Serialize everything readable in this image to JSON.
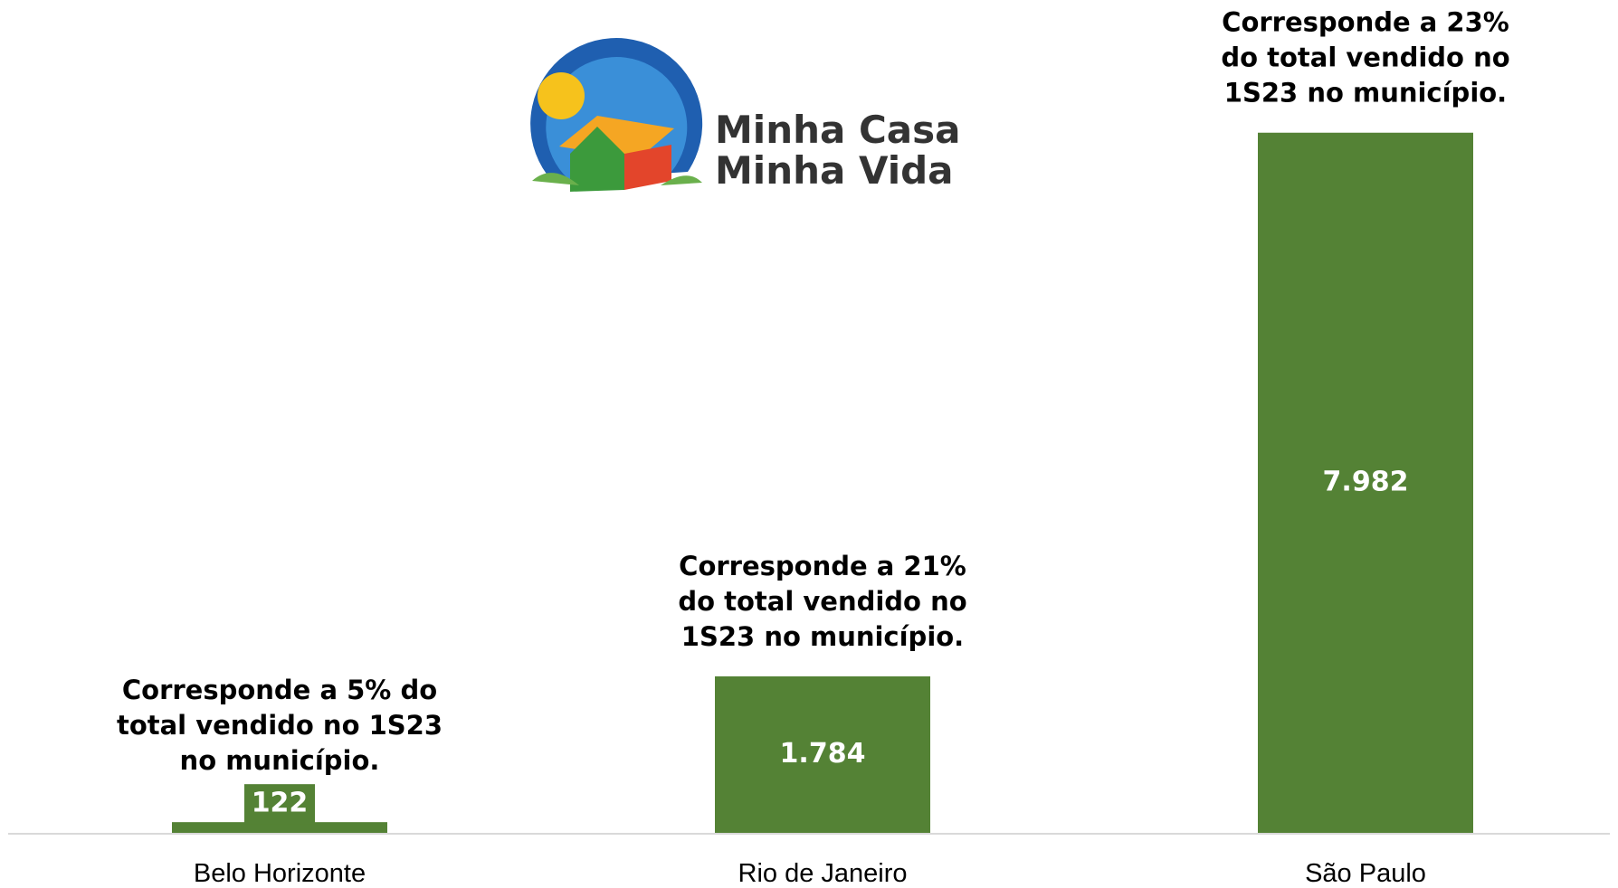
{
  "chart_data": {
    "type": "bar",
    "logo_text": [
      "Minha Casa",
      "Minha Vida"
    ],
    "categories": [
      "Belo Horizonte",
      "Rio de Janeiro",
      "São Paulo"
    ],
    "values": [
      122,
      1784,
      7982
    ],
    "value_labels": [
      "122",
      "1.784",
      "7.982"
    ],
    "annotations": [
      [
        "Corresponde a 5% do",
        "total vendido no 1S23",
        "no município."
      ],
      [
        "Corresponde a 21%",
        "do total vendido no",
        "1S23 no município."
      ],
      [
        "Corresponde a 23%",
        "do total vendido no",
        "1S23 no município."
      ]
    ],
    "color": "#548235",
    "ylim": [
      0,
      8000
    ]
  }
}
